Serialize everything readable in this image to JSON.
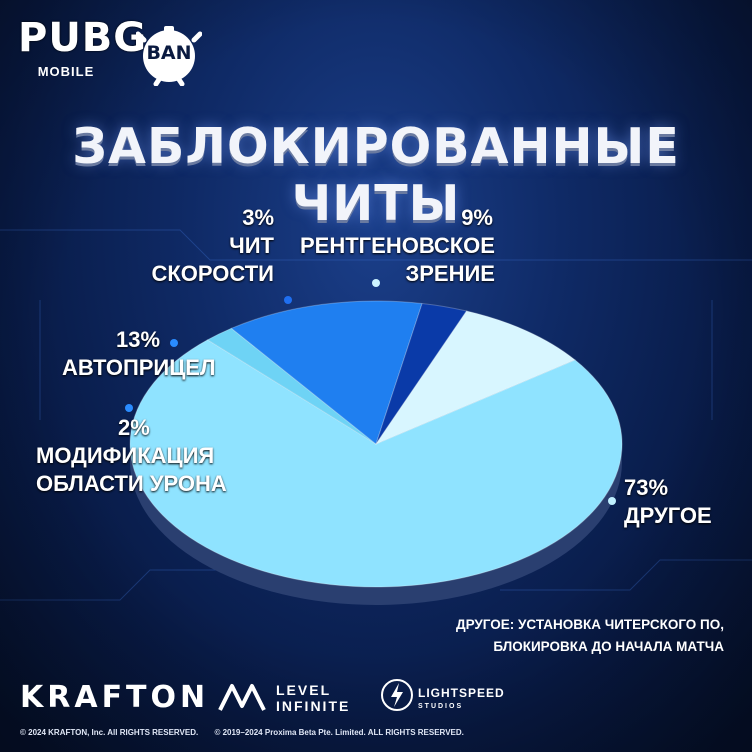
{
  "brand": {
    "game_logo": "PUBG",
    "game_logo_sub": "MOBILE",
    "ban_badge": "BAN"
  },
  "title": "ЗАБЛОКИРОВАННЫЕ ЧИТЫ",
  "chart_data": {
    "type": "pie",
    "title": "ЗАБЛОКИРОВАННЫЕ ЧИТЫ",
    "slices": [
      {
        "label": "ДРУГОЕ",
        "value": 73,
        "pct_text": "73%",
        "color": "#8fe3ff"
      },
      {
        "label": "МОДИФИКАЦИЯ ОБЛАСТИ УРОНА",
        "value": 2,
        "pct_text": "2%",
        "color": "#6ed3f5"
      },
      {
        "label": "АВТОПРИЦЕЛ",
        "value": 13,
        "pct_text": "13%",
        "color": "#1f7ff0"
      },
      {
        "label": "ЧИТ СКОРОСТИ",
        "value": 3,
        "pct_text": "3%",
        "color": "#0a3aa8"
      },
      {
        "label": "РЕНТГЕНОВСКОЕ ЗРЕНИЕ",
        "value": 9,
        "pct_text": "9%",
        "color": "#d8f6ff"
      }
    ],
    "legend": "none (direct labels)"
  },
  "labels": {
    "other": {
      "pct": "73%",
      "name": "ДРУГОЕ"
    },
    "damage": {
      "pct": "2%",
      "line1": "МОДИФИКАЦИЯ",
      "line2": "ОБЛАСТИ УРОНА"
    },
    "aim": {
      "pct": "13%",
      "name": "АВТОПРИЦЕЛ"
    },
    "speed": {
      "pct": "3%",
      "line1": "ЧИТ",
      "line2": "СКОРОСТИ"
    },
    "xray": {
      "pct": "9%",
      "line1": "РЕНТГЕНОВСКОЕ",
      "line2": "ЗРЕНИЕ"
    }
  },
  "note": {
    "line1": "ДРУГОЕ: УСТАНОВКА ЧИТЕРСКОГО ПО,",
    "line2": "БЛОКИРОВКА ДО НАЧАЛА МАТЧА"
  },
  "footer": {
    "krafton": "KRAFTON",
    "level_line1": "LEVEL",
    "level_line2": "INFINITE",
    "lightspeed_line1": "LIGHTSPEED",
    "lightspeed_line2": "STUDIOS",
    "copyright_1": "© 2024 KRAFTON, Inc. All RIGHTS RESERVED.",
    "copyright_2": "© 2019–2024 Proxima Beta Pte. Limited. ALL RIGHTS RESERVED."
  }
}
